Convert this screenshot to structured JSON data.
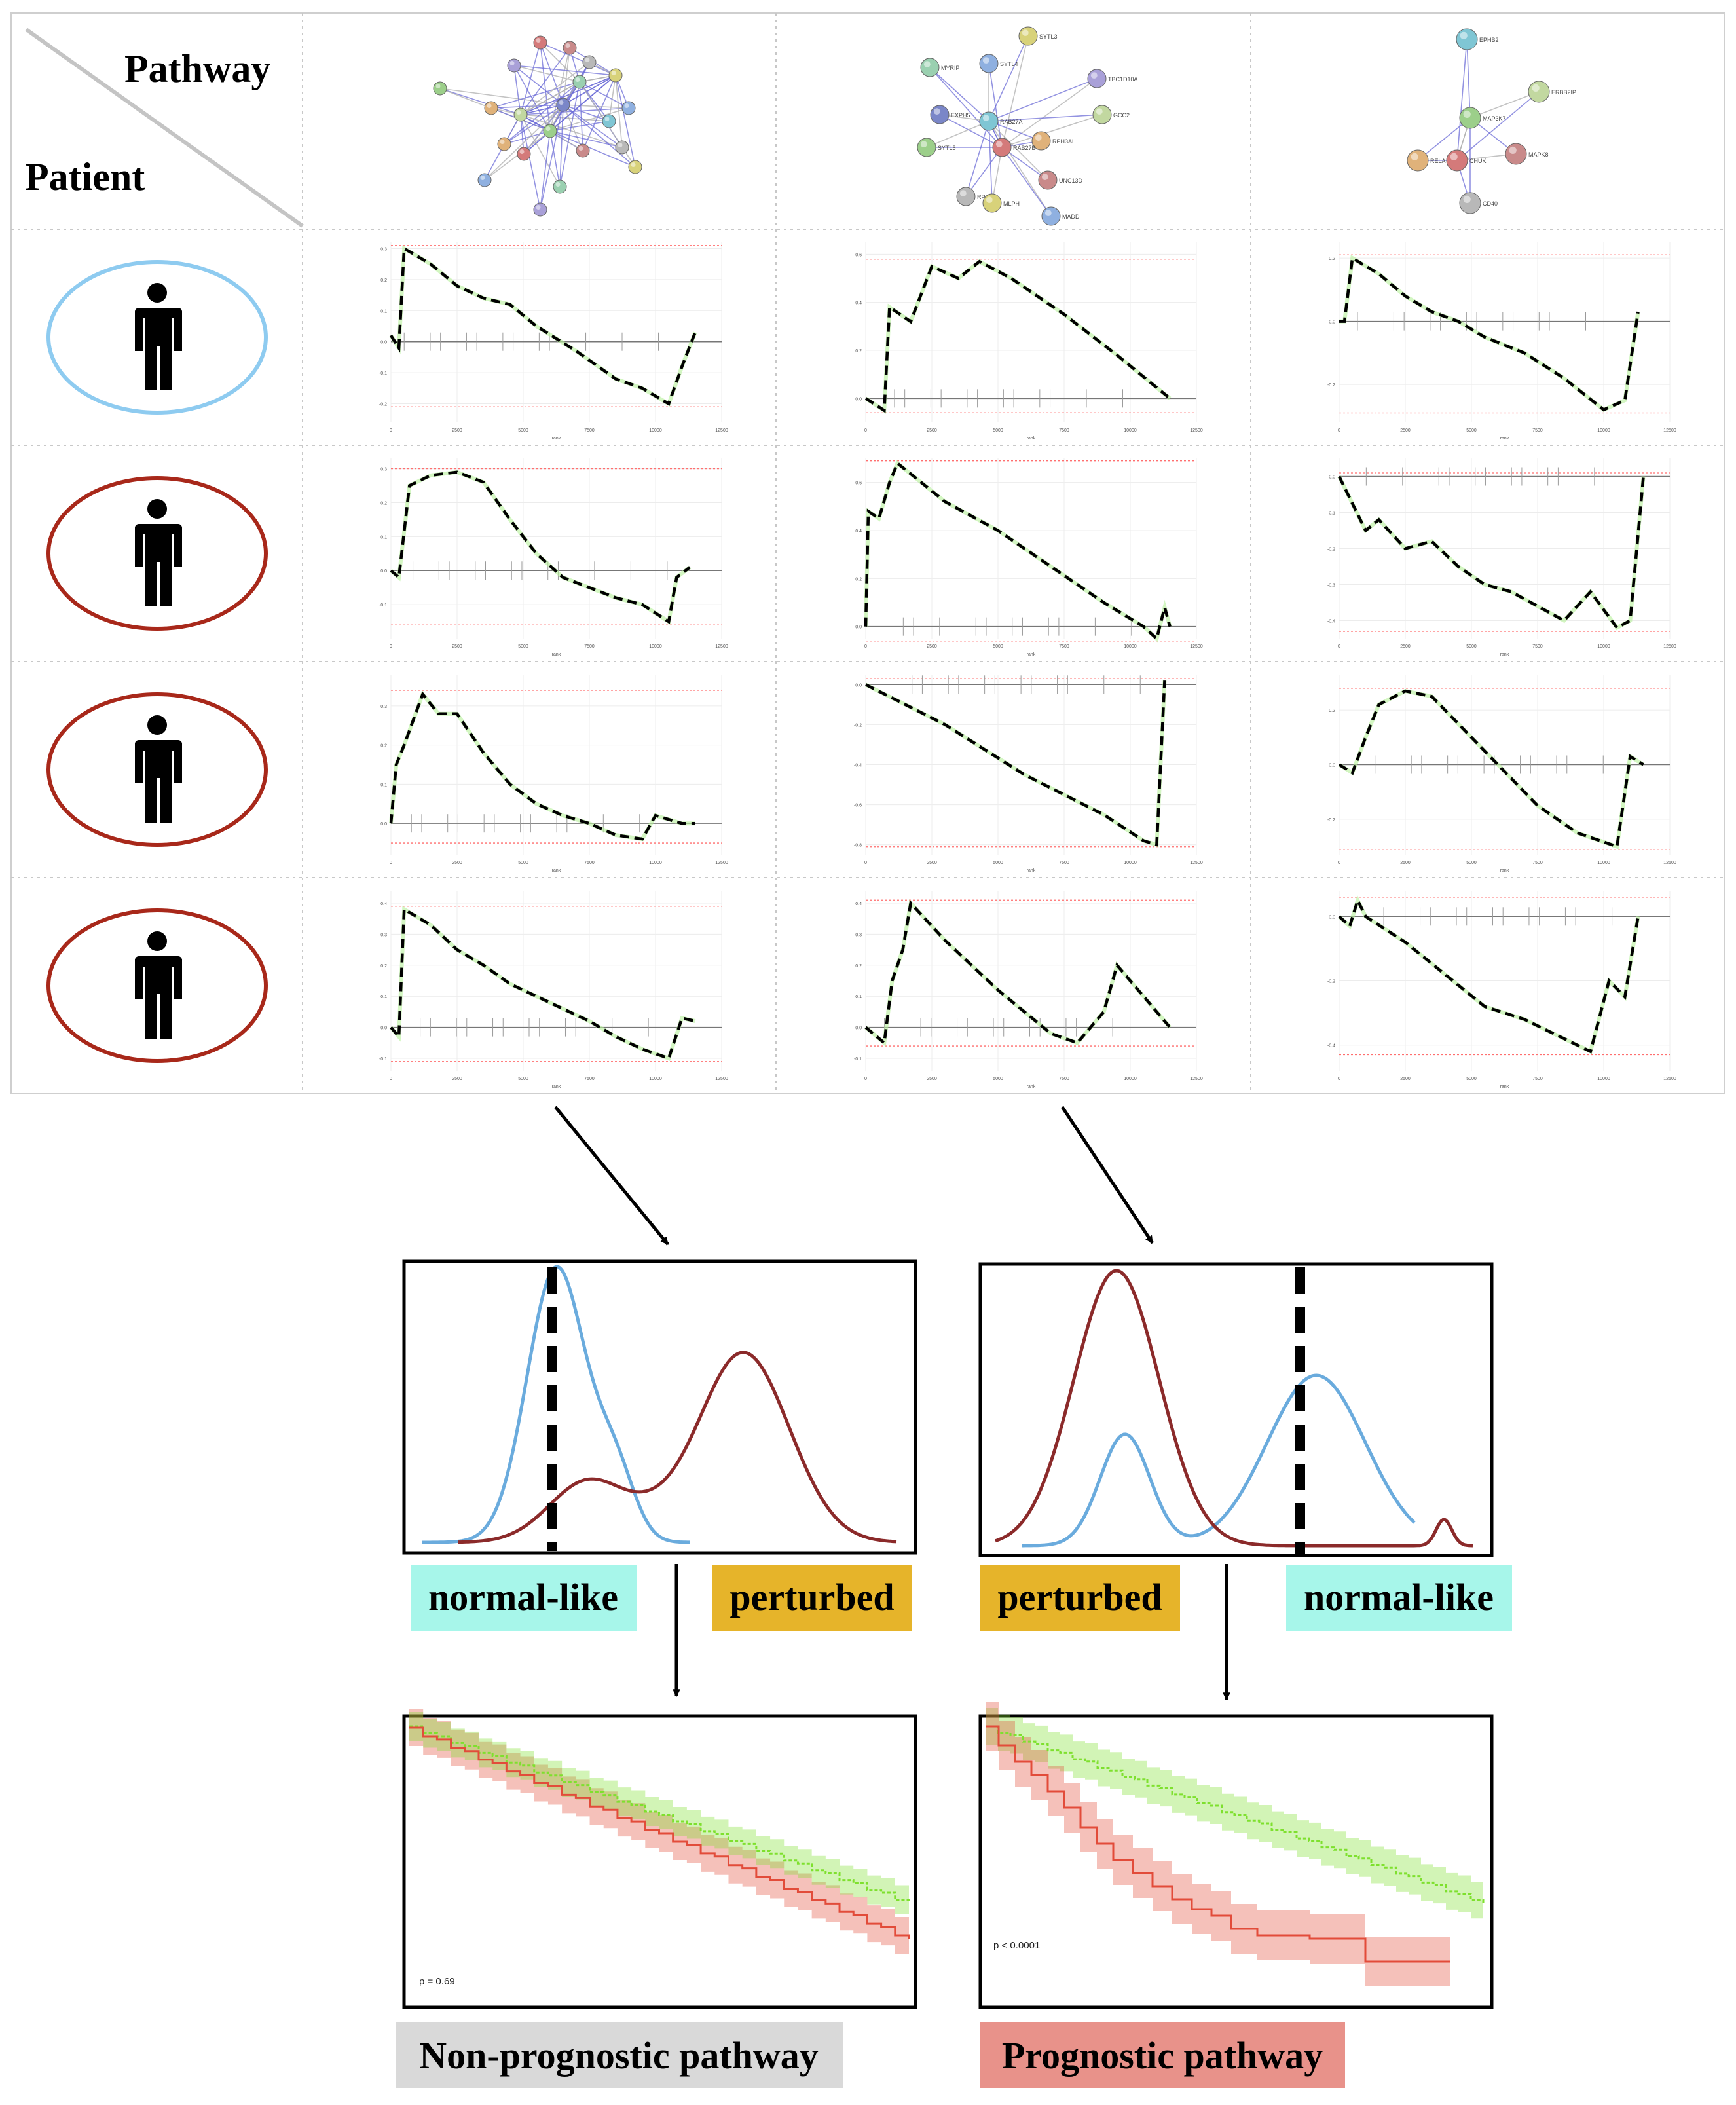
{
  "header": {
    "pathway_label": "Pathway",
    "patient_label": "Patient"
  },
  "networks": [
    {
      "nodes": [
        "",
        "",
        "",
        "",
        "",
        "",
        "",
        "",
        "",
        "",
        "",
        "",
        "",
        "",
        "",
        "",
        "",
        "",
        "",
        "",
        ""
      ]
    },
    {
      "nodes": [
        "SYTL3",
        "SYTL4",
        "MYRIP",
        "TBC1D10A",
        "EXPH5",
        "RAB27A",
        "GCC2",
        "SYTL5",
        "RPH3AL",
        "RAB27B",
        "UNC13D",
        "RPH3A",
        "MLPH",
        "MADD"
      ]
    },
    {
      "nodes": [
        "EPHB2",
        "ERBB2IP",
        "MAP3K7",
        "RELA",
        "CHUK",
        "MAPK8",
        "CD40"
      ]
    }
  ],
  "patients": [
    {
      "group": "normal",
      "ring_color": "#8ecbf0"
    },
    {
      "group": "tumor",
      "ring_color": "#a8281a"
    },
    {
      "group": "tumor",
      "ring_color": "#a8281a"
    },
    {
      "group": "tumor",
      "ring_color": "#a8281a"
    }
  ],
  "enrichment_plots": {
    "x_ticks": [
      "0",
      "2500",
      "5000",
      "7500",
      "10000",
      "12500"
    ],
    "x_label": "rank",
    "color": "#000000",
    "rows": [
      [
        {
          "y_ticks": [
            "0.3",
            "0.2",
            "0.1",
            "0.0",
            "-0.1",
            "-0.2"
          ],
          "ylim": [
            -0.26,
            0.32
          ]
        },
        {
          "y_ticks": [
            "0.6",
            "0.4",
            "0.2",
            "0.0"
          ],
          "ylim": [
            -0.1,
            0.65
          ]
        },
        {
          "y_ticks": [
            "0.2",
            "0.0",
            "-0.2"
          ],
          "ylim": [
            -0.32,
            0.25
          ]
        }
      ],
      [
        {
          "y_ticks": [
            "0.3",
            "0.2",
            "0.1",
            "0.0",
            "-0.1"
          ],
          "ylim": [
            -0.2,
            0.33
          ]
        },
        {
          "y_ticks": [
            "0.6",
            "0.4",
            "0.2",
            "0.0"
          ],
          "ylim": [
            -0.05,
            0.7
          ]
        },
        {
          "y_ticks": [
            "0.0",
            "-0.1",
            "-0.2",
            "-0.3",
            "-0.4"
          ],
          "ylim": [
            -0.45,
            0.05
          ]
        }
      ],
      [
        {
          "y_ticks": [
            "0.3",
            "0.2",
            "0.1",
            "0.0"
          ],
          "ylim": [
            -0.08,
            0.38
          ]
        },
        {
          "y_ticks": [
            "0.0",
            "-0.2",
            "-0.4",
            "-0.6",
            "-0.8"
          ],
          "ylim": [
            -0.85,
            0.05
          ]
        },
        {
          "y_ticks": [
            "0.2",
            "0.0",
            "-0.2"
          ],
          "ylim": [
            -0.33,
            0.33
          ]
        }
      ],
      [
        {
          "y_ticks": [
            "0.4",
            "0.3",
            "0.2",
            "0.1",
            "0.0",
            "-0.1"
          ],
          "ylim": [
            -0.14,
            0.44
          ]
        },
        {
          "y_ticks": [
            "0.4",
            "0.3",
            "0.2",
            "0.1",
            "0.0",
            "-0.1"
          ],
          "ylim": [
            -0.14,
            0.44
          ]
        },
        {
          "y_ticks": [
            "0.0",
            "-0.2",
            "-0.4"
          ],
          "ylim": [
            -0.48,
            0.08
          ]
        }
      ]
    ]
  },
  "distributions": [
    {
      "normal_color": "#6aabdd",
      "perturbed_color": "#8b2a2a"
    },
    {
      "normal_color": "#6aabdd",
      "perturbed_color": "#8b2a2a"
    }
  ],
  "labels": {
    "left_normal": "normal-like",
    "left_perturbed": "perturbed",
    "right_perturbed": "perturbed",
    "right_normal": "normal-like",
    "normal_like_bg": "#a7f6ea",
    "perturbed_bg": "#e6b42a"
  },
  "survival": [
    {
      "p_text": "p = 0.69",
      "green_color": "#7ee02e",
      "red_color": "#e24c3a"
    },
    {
      "p_text": "p < 0.0001",
      "green_color": "#7ee02e",
      "red_color": "#e24c3a"
    }
  ],
  "conclusions": {
    "left": "Non-prognostic pathway",
    "right": "Prognostic pathway",
    "left_bg": "#d9d9d9",
    "right_bg": "#e8928a"
  }
}
